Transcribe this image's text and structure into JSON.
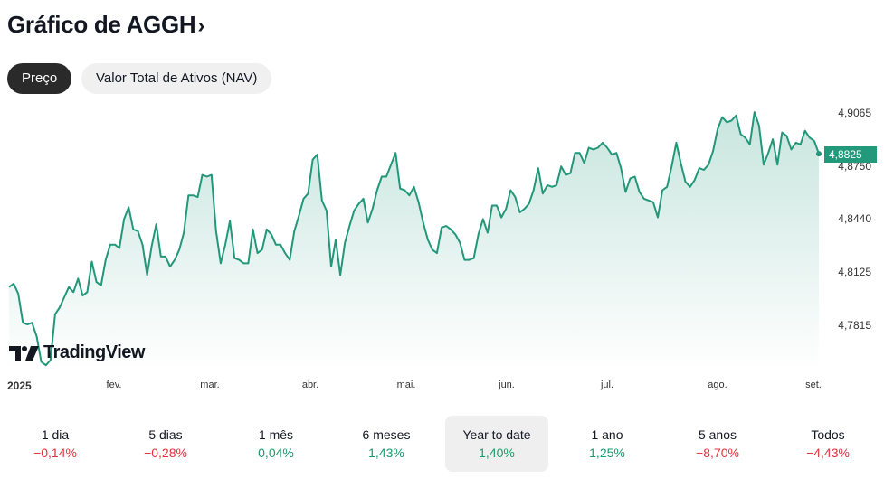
{
  "header": {
    "title": "Gráfico de AGGH",
    "chevron": "›"
  },
  "tabs": [
    {
      "label": "Preço",
      "active": true
    },
    {
      "label": "Valor Total de Ativos (NAV)",
      "active": false
    }
  ],
  "logo": "TradingView",
  "chart_data": {
    "type": "area",
    "line_color": "#22977a",
    "y_ticks": [
      "4,9065",
      "4,8750",
      "4,8440",
      "4,8125",
      "4,7815"
    ],
    "y_tick_values": [
      4.9065,
      4.875,
      4.844,
      4.8125,
      4.7815
    ],
    "ylim": [
      4.752,
      4.915
    ],
    "x_ticks": [
      "2025",
      "fev.",
      "mar.",
      "abr.",
      "mai.",
      "jun.",
      "jul.",
      "ago.",
      "set."
    ],
    "last_value_label": "4,8825",
    "values": [
      4.804,
      4.806,
      4.8,
      4.783,
      4.782,
      4.783,
      4.775,
      4.76,
      4.758,
      4.761,
      4.788,
      4.792,
      4.798,
      4.804,
      4.801,
      4.809,
      4.799,
      4.801,
      4.819,
      4.807,
      4.805,
      4.82,
      4.829,
      4.829,
      4.827,
      4.844,
      4.851,
      4.838,
      4.837,
      4.829,
      4.811,
      4.828,
      4.841,
      4.822,
      4.822,
      4.816,
      4.82,
      4.826,
      4.836,
      4.858,
      4.858,
      4.857,
      4.87,
      4.869,
      4.87,
      4.837,
      4.818,
      4.829,
      4.843,
      4.821,
      4.82,
      4.818,
      4.818,
      4.838,
      4.824,
      4.826,
      4.838,
      4.835,
      4.829,
      4.829,
      4.824,
      4.82,
      4.837,
      4.846,
      4.856,
      4.859,
      4.879,
      4.882,
      4.855,
      4.849,
      4.816,
      4.832,
      4.811,
      4.83,
      4.84,
      4.849,
      4.853,
      4.856,
      4.842,
      4.85,
      4.861,
      4.869,
      4.869,
      4.876,
      4.883,
      4.862,
      4.861,
      4.858,
      4.863,
      4.854,
      4.842,
      4.832,
      4.826,
      4.824,
      4.839,
      4.84,
      4.838,
      4.835,
      4.83,
      4.82,
      4.82,
      4.821,
      4.835,
      4.844,
      4.836,
      4.852,
      4.852,
      4.845,
      4.85,
      4.861,
      4.857,
      4.848,
      4.85,
      4.853,
      4.861,
      4.874,
      4.859,
      4.864,
      4.863,
      4.864,
      4.875,
      4.87,
      4.871,
      4.883,
      4.883,
      4.877,
      4.886,
      4.885,
      4.886,
      4.889,
      4.886,
      4.882,
      4.883,
      4.874,
      4.86,
      4.868,
      4.869,
      4.86,
      4.856,
      4.855,
      4.854,
      4.845,
      4.861,
      4.863,
      4.875,
      4.889,
      4.877,
      4.866,
      4.863,
      4.867,
      4.874,
      4.873,
      4.876,
      4.884,
      4.897,
      4.904,
      4.901,
      4.902,
      4.905,
      4.894,
      4.892,
      4.888,
      4.907,
      4.899,
      4.876,
      4.883,
      4.891,
      4.876,
      4.895,
      4.893,
      4.885,
      4.889,
      4.888,
      4.896,
      4.892,
      4.89,
      4.8825
    ]
  },
  "periods": [
    {
      "label": "1 dia",
      "change": "−0,14%",
      "dir": "neg"
    },
    {
      "label": "5 dias",
      "change": "−0,28%",
      "dir": "neg"
    },
    {
      "label": "1 mês",
      "change": "0,04%",
      "dir": "pos"
    },
    {
      "label": "6 meses",
      "change": "1,43%",
      "dir": "pos"
    },
    {
      "label": "Year to date",
      "change": "1,40%",
      "dir": "pos",
      "selected": true
    },
    {
      "label": "1 ano",
      "change": "1,25%",
      "dir": "pos"
    },
    {
      "label": "5 anos",
      "change": "−8,70%",
      "dir": "neg"
    },
    {
      "label": "Todos",
      "change": "−4,43%",
      "dir": "neg"
    }
  ],
  "colors": {
    "positive": "#1a9a6c",
    "negative": "#e0323c",
    "accent": "#22997a"
  }
}
